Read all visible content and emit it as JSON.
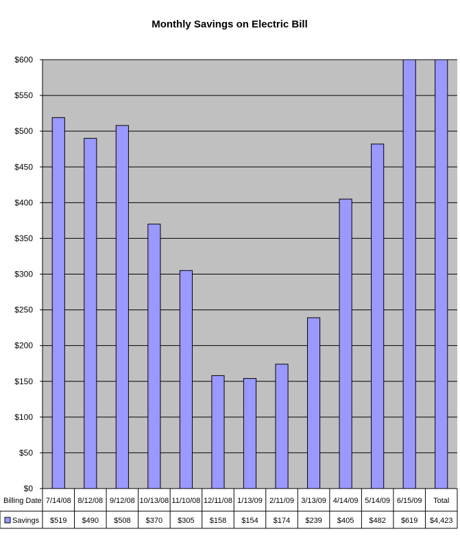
{
  "chart_data": {
    "type": "bar",
    "title": "Monthly Savings on Electric Bill",
    "xlabel": "Billing Date",
    "ylabel": "",
    "ylim": [
      0,
      600
    ],
    "yticks": [
      0,
      50,
      100,
      150,
      200,
      250,
      300,
      350,
      400,
      450,
      500,
      550,
      600
    ],
    "ytick_labels": [
      "$0",
      "$50",
      "$100",
      "$150",
      "$200",
      "$250",
      "$300",
      "$350",
      "$400",
      "$450",
      "$500",
      "$550",
      "$600"
    ],
    "categories": [
      "7/14/08",
      "8/12/08",
      "9/12/08",
      "10/13/08",
      "11/10/08",
      "12/11/08",
      "1/13/09",
      "2/11/09",
      "3/13/09",
      "4/14/09",
      "5/14/09",
      "6/15/09",
      "Total"
    ],
    "series": [
      {
        "name": "Savings",
        "values": [
          519,
          490,
          508,
          370,
          305,
          158,
          154,
          174,
          239,
          405,
          482,
          619,
          4423
        ],
        "value_labels": [
          "$519",
          "$490",
          "$508",
          "$370",
          "$305",
          "$158",
          "$154",
          "$174",
          "$239",
          "$405",
          "$482",
          "$619",
          "$4,423"
        ]
      }
    ],
    "grid": true,
    "legend": "data-table",
    "colors": {
      "bar_fill": "#9999ff",
      "bar_stroke": "#000000",
      "plot_background": "#c0c0c0",
      "gridline": "#000000"
    }
  }
}
